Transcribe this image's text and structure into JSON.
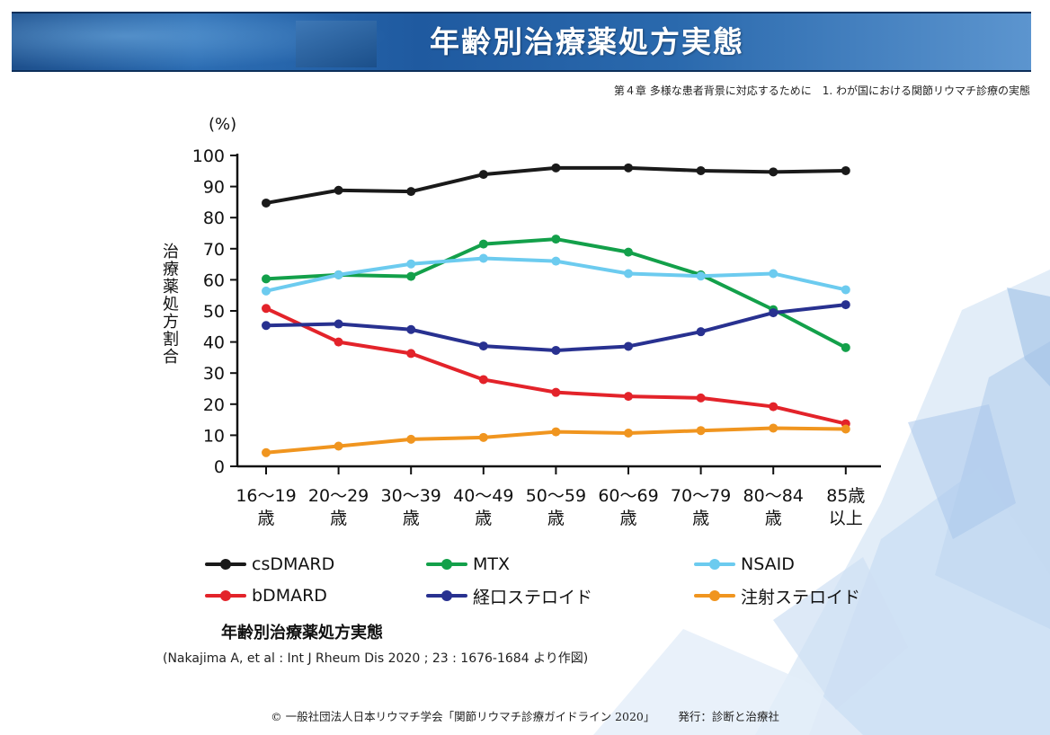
{
  "header": {
    "title": "年齢別治療薬処方実態"
  },
  "subtitle": "第４章 多様な患者背景に対応するために　1. わが国における関節リウマチ診療の実態",
  "chart_data": {
    "type": "line",
    "ylabel": "治療薬処方割合",
    "yunit": "(%)",
    "ylim": [
      0,
      100
    ],
    "yticks": [
      "0",
      "10",
      "20",
      "30",
      "40",
      "50",
      "60",
      "70",
      "80",
      "90",
      "100"
    ],
    "categories": [
      [
        "16～19",
        "歳"
      ],
      [
        "20～29",
        "歳"
      ],
      [
        "30～39",
        "歳"
      ],
      [
        "40～49",
        "歳"
      ],
      [
        "50～59",
        "歳"
      ],
      [
        "60～69",
        "歳"
      ],
      [
        "70～79",
        "歳"
      ],
      [
        "80～84",
        "歳"
      ],
      [
        "85歳",
        "以上"
      ]
    ],
    "series": [
      {
        "name": "csDMARD",
        "color": "#1a1a1a",
        "values": [
          84.7,
          88.8,
          88.4,
          93.9,
          96.0,
          96.0,
          95.1,
          94.7,
          95.1
        ]
      },
      {
        "name": "MTX",
        "color": "#13a04a",
        "values": [
          60.3,
          61.6,
          61.1,
          71.5,
          73.1,
          68.9,
          61.6,
          50.4,
          38.2
        ]
      },
      {
        "name": "NSAID",
        "color": "#6ccbef",
        "values": [
          56.4,
          61.6,
          65.1,
          66.9,
          66.0,
          62.0,
          61.2,
          62.0,
          56.8
        ]
      },
      {
        "name": "bDMARD",
        "color": "#e3232a",
        "values": [
          50.8,
          40.0,
          36.3,
          27.9,
          23.8,
          22.5,
          22.0,
          19.2,
          13.7
        ]
      },
      {
        "name": "経口ステロイド",
        "color": "#283190",
        "values": [
          45.3,
          45.8,
          44.0,
          38.7,
          37.3,
          38.6,
          43.3,
          49.4,
          52.0
        ]
      },
      {
        "name": "注射ステロイド",
        "color": "#f0951f",
        "values": [
          4.4,
          6.5,
          8.7,
          9.3,
          11.1,
          10.7,
          11.5,
          12.3,
          12.0
        ]
      }
    ]
  },
  "caption": {
    "title": "年齢別治療薬処方実態",
    "citation": "(Nakajima A, et al : Int J Rheum Dis 2020 ; 23 : 1676-1684 より作図)"
  },
  "footer": {
    "copyright": "© 一般社団法人日本リウマチ学会「関節リウマチ診療ガイドライン 2020」",
    "publisher": "発行：診断と治療社"
  }
}
